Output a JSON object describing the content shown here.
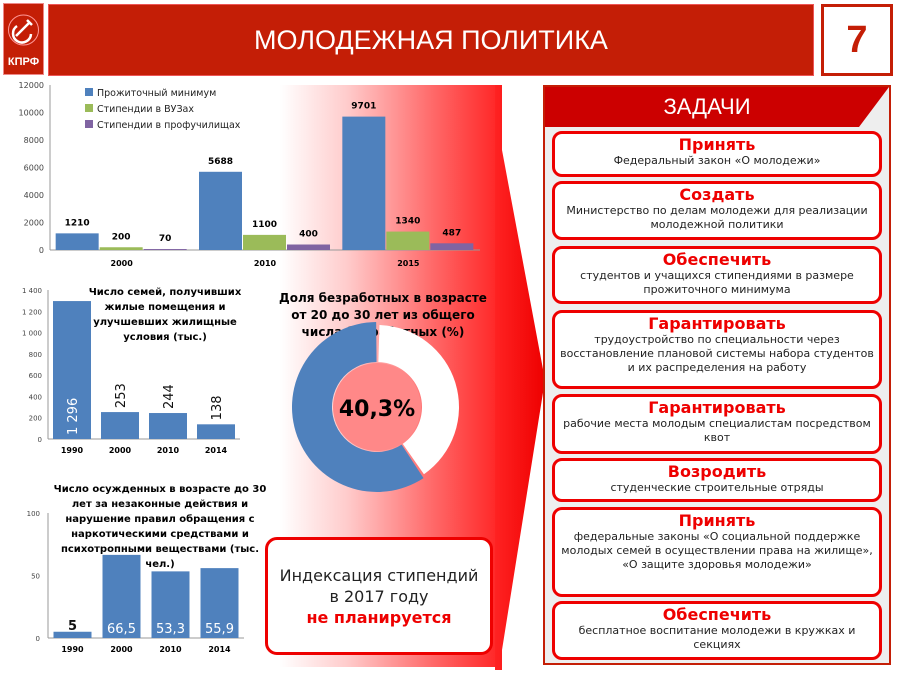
{
  "header": {
    "title": "МОЛОДЕЖНАЯ ПОЛИТИКА",
    "page_number": "7",
    "logo_text": "КПРФ"
  },
  "chart_data": [
    {
      "type": "bar",
      "title": "",
      "categories": [
        "2000",
        "2010",
        "2015"
      ],
      "series": [
        {
          "name": "Прожиточный минимум",
          "color": "#4f81bd",
          "values": [
            1210,
            5688,
            9701
          ]
        },
        {
          "name": "Стипендии в ВУЗах",
          "color": "#9bbb59",
          "values": [
            200,
            1100,
            1340
          ]
        },
        {
          "name": "Стипендии в профучилищах",
          "color": "#8064a2",
          "values": [
            70,
            400,
            487
          ]
        }
      ],
      "yticks": [
        "0",
        "2000",
        "4000",
        "6000",
        "8000",
        "10000",
        "12000"
      ],
      "ylim": [
        0,
        12000
      ],
      "legend": "top-left"
    },
    {
      "type": "bar",
      "title": "Число семей, получивших жилые помещения и улучшевших жилищные условия (тыс.)",
      "title_lines": [
        "Число семей, получивших",
        "жилые помещения и",
        "улучшевших жилищные",
        "условия (тыс.)"
      ],
      "categories": [
        "1990",
        "2000",
        "2010",
        "2014"
      ],
      "values": [
        1296,
        253,
        244,
        138
      ],
      "labels": [
        "1 296",
        "253",
        "244",
        "138"
      ],
      "yticks": [
        "0",
        "200",
        "400",
        "600",
        "800",
        "1 000",
        "1 200",
        "1 400"
      ],
      "ylim": [
        0,
        1400
      ]
    },
    {
      "type": "pie",
      "title": "Доля безработных в возрасте от 20 до 30 лет из общего числа безработных (%)",
      "title_lines": [
        "Доля безработных в возрасте",
        "от 20 до 30 лет из общего",
        "числа безработных (%)"
      ],
      "values": [
        40.3,
        59.7
      ],
      "label": "40,3%"
    },
    {
      "type": "bar",
      "title": "Число осужденных в возрасте до 30 лет за незаконные действия и нарушение правил обращения с наркотическими средствами и психотропными веществами (тыс. чел.)",
      "title_lines": [
        "Число осужденных в возрасте до 30",
        "лет за незаконные действия и",
        "нарушение правил обращения с",
        "наркотическими средствами и",
        "психотропными веществами (тыс.",
        "чел.)"
      ],
      "categories": [
        "1990",
        "2000",
        "2010",
        "2014"
      ],
      "values": [
        5,
        66.5,
        53.3,
        55.9
      ],
      "labels": [
        "5",
        "66,5",
        "53,3",
        "55,9"
      ],
      "yticks": [
        "0",
        "50",
        "100"
      ],
      "ylim": [
        0,
        100
      ]
    }
  ],
  "indexation": {
    "line1": "Индексация  стипендий",
    "line2": "в 2017 году",
    "line3": "не планируется"
  },
  "tasks": {
    "title": "ЗАДАЧИ",
    "items": [
      {
        "verb": "Принять",
        "desc": "Федеральный закон «О молодежи»"
      },
      {
        "verb": "Создать",
        "desc": "Министерство по делам молодежи для реализации молодежной политики"
      },
      {
        "verb": "Обеспечить",
        "desc": "студентов и учащихся стипендиями в размере прожиточного минимума"
      },
      {
        "verb": "Гарантировать",
        "desc": "трудоустройство  по специальности через восстановление плановой системы набора студентов и их распределения на работу"
      },
      {
        "verb": "Гарантировать",
        "desc": "рабочие места молодым специалистам посредством квот"
      },
      {
        "verb": "Возродить",
        "desc": "студенческие строительные отряды"
      },
      {
        "verb": "Принять",
        "desc": "федеральные законы «О социальной поддержке молодых семей в осуществлении права на жилище», «О защите здоровья молодежи»"
      },
      {
        "verb": "Обеспечить",
        "desc": "бесплатное воспитание молодежи в кружках и секциях"
      }
    ]
  }
}
